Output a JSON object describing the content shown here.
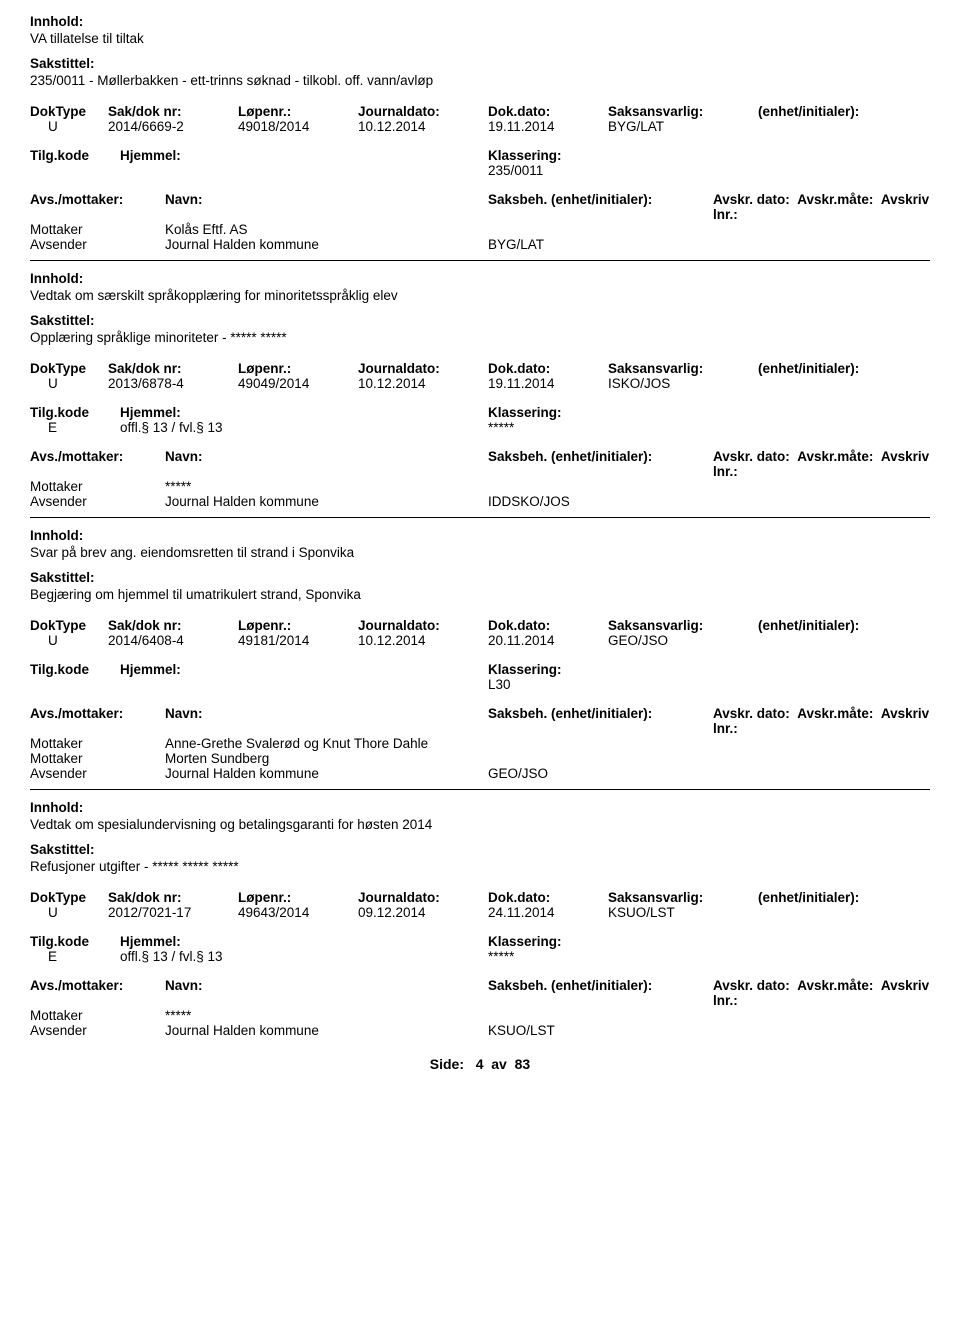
{
  "labels": {
    "innhold": "Innhold:",
    "sakstittel": "Sakstittel:",
    "doktype": "DokType",
    "sakdoknr": "Sak/dok nr:",
    "lopenr": "Løpenr.:",
    "journaldato": "Journaldato:",
    "dokdato": "Dok.dato:",
    "saksansvarlig": "Saksansvarlig:",
    "enhet": "(enhet/initialer):",
    "tilgkode": "Tilg.kode",
    "hjemmel": "Hjemmel:",
    "klassering": "Klassering:",
    "avsmottaker": "Avs./mottaker:",
    "navn": "Navn:",
    "saksbeh": "Saksbeh. (enhet/initialer):",
    "avskrdato": "Avskr. dato:",
    "avskrmate": "Avskr.måte:",
    "avskrivlnr": "Avskriv lnr.:",
    "mottaker": "Mottaker",
    "avsender": "Avsender"
  },
  "footer": {
    "side": "Side:",
    "page": "4",
    "av": "av",
    "total": "83"
  },
  "entries": [
    {
      "innhold": "VA tillatelse til tiltak",
      "sakstittel": "235/0011 - Møllerbakken - ett-trinns søknad - tilkobl. off. vann/avløp",
      "doktype": "U",
      "sakdok": "2014/6669-2",
      "lopenr": "49018/2014",
      "journaldato": "10.12.2014",
      "dokdato": "19.11.2014",
      "saksansvarlig": "BYG/LAT",
      "tilgkode": "",
      "hjemmel": "",
      "klassering": "235/0011",
      "parties": [
        {
          "role": "Mottaker",
          "navn": "Kolås Eftf. AS",
          "saksbeh": ""
        },
        {
          "role": "Avsender",
          "navn": "Journal Halden kommune",
          "saksbeh": "BYG/LAT"
        }
      ]
    },
    {
      "innhold": "Vedtak om særskilt språkopplæring for minoritetsspråklig elev",
      "sakstittel": "Opplæring språklige minoriteter - ***** *****",
      "doktype": "U",
      "sakdok": "2013/6878-4",
      "lopenr": "49049/2014",
      "journaldato": "10.12.2014",
      "dokdato": "19.11.2014",
      "saksansvarlig": "ISKO/JOS",
      "tilgkode": "E",
      "hjemmel": "offl.§ 13 / fvl.§ 13",
      "klassering": "*****",
      "parties": [
        {
          "role": "Mottaker",
          "navn": "*****",
          "saksbeh": ""
        },
        {
          "role": "Avsender",
          "navn": "Journal Halden kommune",
          "saksbeh": "IDDSKO/JOS"
        }
      ]
    },
    {
      "innhold": "Svar på brev ang. eiendomsretten til strand i Sponvika",
      "sakstittel": "Begjæring om hjemmel til umatrikulert strand, Sponvika",
      "doktype": "U",
      "sakdok": "2014/6408-4",
      "lopenr": "49181/2014",
      "journaldato": "10.12.2014",
      "dokdato": "20.11.2014",
      "saksansvarlig": "GEO/JSO",
      "tilgkode": "",
      "hjemmel": "",
      "klassering": "L30",
      "parties": [
        {
          "role": "Mottaker",
          "navn": "Anne-Grethe Svalerød og Knut Thore Dahle",
          "saksbeh": ""
        },
        {
          "role": "Mottaker",
          "navn": "Morten Sundberg",
          "saksbeh": ""
        },
        {
          "role": "Avsender",
          "navn": "Journal Halden kommune",
          "saksbeh": "GEO/JSO"
        }
      ]
    },
    {
      "innhold": "Vedtak om spesialundervisning og betalingsgaranti for høsten 2014",
      "sakstittel": "Refusjoner utgifter - ***** ***** *****",
      "doktype": "U",
      "sakdok": "2012/7021-17",
      "lopenr": "49643/2014",
      "journaldato": "09.12.2014",
      "dokdato": "24.11.2014",
      "saksansvarlig": "KSUO/LST",
      "tilgkode": "E",
      "hjemmel": "offl.§ 13 / fvl.§ 13",
      "klassering": "*****",
      "parties": [
        {
          "role": "Mottaker",
          "navn": "*****",
          "saksbeh": ""
        },
        {
          "role": "Avsender",
          "navn": "Journal Halden kommune",
          "saksbeh": "KSUO/LST"
        }
      ]
    }
  ]
}
